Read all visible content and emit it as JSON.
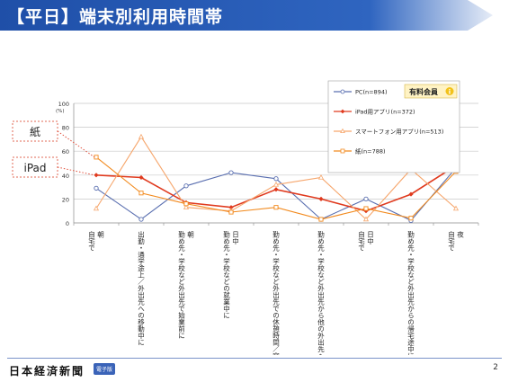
{
  "slide": {
    "title": "【平日】端末別利用時間帯",
    "footer_logo": "日本経済新聞",
    "footer_badge": "電子版",
    "page_number": "2",
    "callout_paper": "紙",
    "callout_ipad": "iPad",
    "legend_badge": "有料会員",
    "legend_badge_icon": "info-icon"
  },
  "chart_data": {
    "type": "line",
    "ylabel": "(%)",
    "ylim": [
      0,
      100
    ],
    "yticks": [
      0,
      20,
      40,
      60,
      80,
      100
    ],
    "grid": true,
    "legend_position": "top-right",
    "categories": [
      "朝　自宅で",
      "出勤・通学途上／外出先への移動中に",
      "朝　勤め先・学校など外出先で始業前に",
      "日中　勤め先・学校などの就業中に",
      "勤め先・学校など外出先での休憩時間／空いた時間に",
      "勤め先・学校など外出先から他の外出先への移動中に",
      "日中　自宅で",
      "勤め先・学校など外出先からの帰宅途中に",
      "夜　自宅で"
    ],
    "series": [
      {
        "name": "PC(n=894)",
        "color": "#5a6fb0",
        "marker": "circle",
        "values": [
          29,
          3,
          31,
          42,
          37,
          3,
          20,
          2,
          46
        ]
      },
      {
        "name": "iPad用アプリ(n=372)",
        "color": "#e03a1e",
        "marker": "diamond",
        "values": [
          40,
          38,
          17,
          13,
          28,
          20,
          10,
          24,
          48
        ]
      },
      {
        "name": "スマートフォン用アプリ(n=513)",
        "color": "#f6a66c",
        "marker": "triangle",
        "values": [
          12,
          72,
          13,
          10,
          32,
          38,
          3,
          45,
          12
        ]
      },
      {
        "name": "紙(n=788)",
        "color": "#f28a1e",
        "marker": "square",
        "values": [
          55,
          25,
          16,
          9,
          13,
          3,
          12,
          4,
          43
        ]
      }
    ]
  }
}
